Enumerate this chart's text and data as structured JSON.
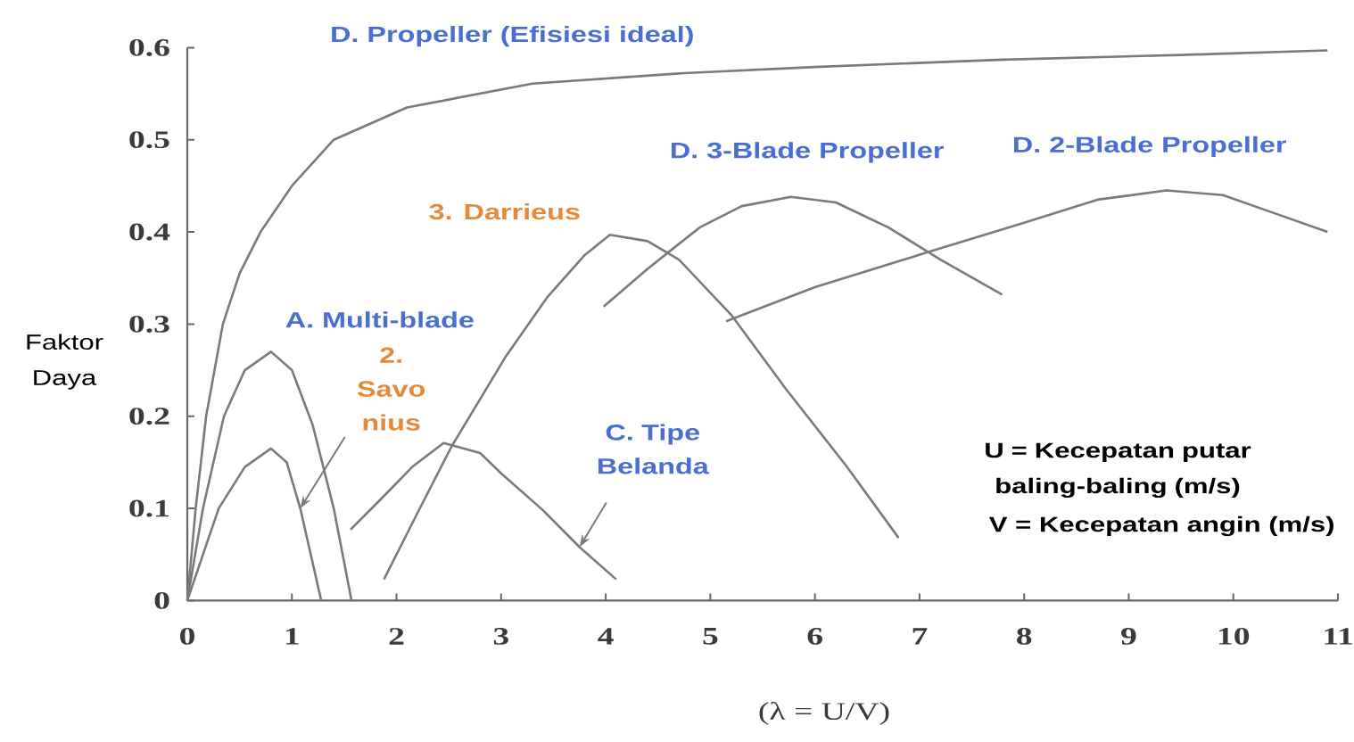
{
  "chart_data": {
    "type": "line",
    "xlabel": "(λ = U/V)",
    "ylabel": "Faktor Daya",
    "xlim": [
      0,
      11
    ],
    "ylim": [
      0,
      0.6
    ],
    "xticks": [
      0,
      1,
      2,
      3,
      4,
      5,
      6,
      7,
      8,
      9,
      10,
      11
    ],
    "yticks": [
      0,
      0.1,
      0.2,
      0.3,
      0.4,
      0.5,
      0.6
    ],
    "marker": "none",
    "line_style": "solid",
    "series": [
      {
        "name": "D. Propeller (Efisiesi ideal)",
        "color": "#7a7a7a",
        "x": [
          0,
          0.08,
          0.18,
          0.34,
          0.5,
          0.7,
          1.0,
          1.4,
          2.1,
          3.3,
          4.7,
          6.0,
          7.8,
          9.5,
          10.9
        ],
        "values": [
          0,
          0.1,
          0.2,
          0.3,
          0.355,
          0.4,
          0.45,
          0.5,
          0.535,
          0.561,
          0.572,
          0.579,
          0.587,
          0.592,
          0.597
        ]
      },
      {
        "name": "A. Multi-blade",
        "color": "#7a7a7a",
        "x": [
          0,
          0.15,
          0.35,
          0.55,
          0.8,
          1.0,
          1.2,
          1.4,
          1.57
        ],
        "values": [
          0,
          0.1,
          0.2,
          0.25,
          0.27,
          0.25,
          0.19,
          0.1,
          0
        ]
      },
      {
        "name": "2. Savo nius",
        "color": "#7a7a7a",
        "x": [
          0,
          0.3,
          0.55,
          0.8,
          0.95,
          1.08,
          1.28
        ],
        "values": [
          0,
          0.1,
          0.145,
          0.165,
          0.15,
          0.1,
          0
        ]
      },
      {
        "name": "3. Darrieus",
        "color": "#7a7a7a",
        "x": [
          1.88,
          2.2,
          2.53,
          3.04,
          3.44,
          3.8,
          4.04,
          4.4,
          4.7,
          5.2,
          5.72,
          6.3,
          6.8
        ],
        "values": [
          0.023,
          0.095,
          0.168,
          0.264,
          0.329,
          0.375,
          0.397,
          0.39,
          0.37,
          0.31,
          0.23,
          0.146,
          0.068
        ]
      },
      {
        "name": "C. Tipe Belanda",
        "color": "#7a7a7a",
        "x": [
          1.56,
          1.85,
          2.15,
          2.45,
          2.8,
          3.0,
          3.4,
          3.75,
          4.1
        ],
        "values": [
          0.077,
          0.11,
          0.145,
          0.171,
          0.16,
          0.138,
          0.098,
          0.058,
          0.023
        ]
      },
      {
        "name": "D. 3-Blade Propeller",
        "color": "#7a7a7a",
        "x": [
          3.98,
          4.4,
          4.9,
          5.3,
          5.77,
          6.2,
          6.7,
          7.2,
          7.79
        ],
        "values": [
          0.319,
          0.36,
          0.405,
          0.428,
          0.438,
          0.432,
          0.405,
          0.37,
          0.332
        ]
      },
      {
        "name": "D. 2-Blade Propeller",
        "color": "#7a7a7a",
        "x": [
          5.15,
          6.0,
          7.05,
          8.0,
          8.7,
          9.36,
          9.9,
          10.4,
          10.9
        ],
        "values": [
          0.303,
          0.34,
          0.377,
          0.41,
          0.435,
          0.445,
          0.44,
          0.42,
          0.4
        ]
      }
    ],
    "annotations": [
      "U = Kecepatan putar baling-baling (m/s)",
      "V = Kecepatan angin (m/s)"
    ]
  }
}
